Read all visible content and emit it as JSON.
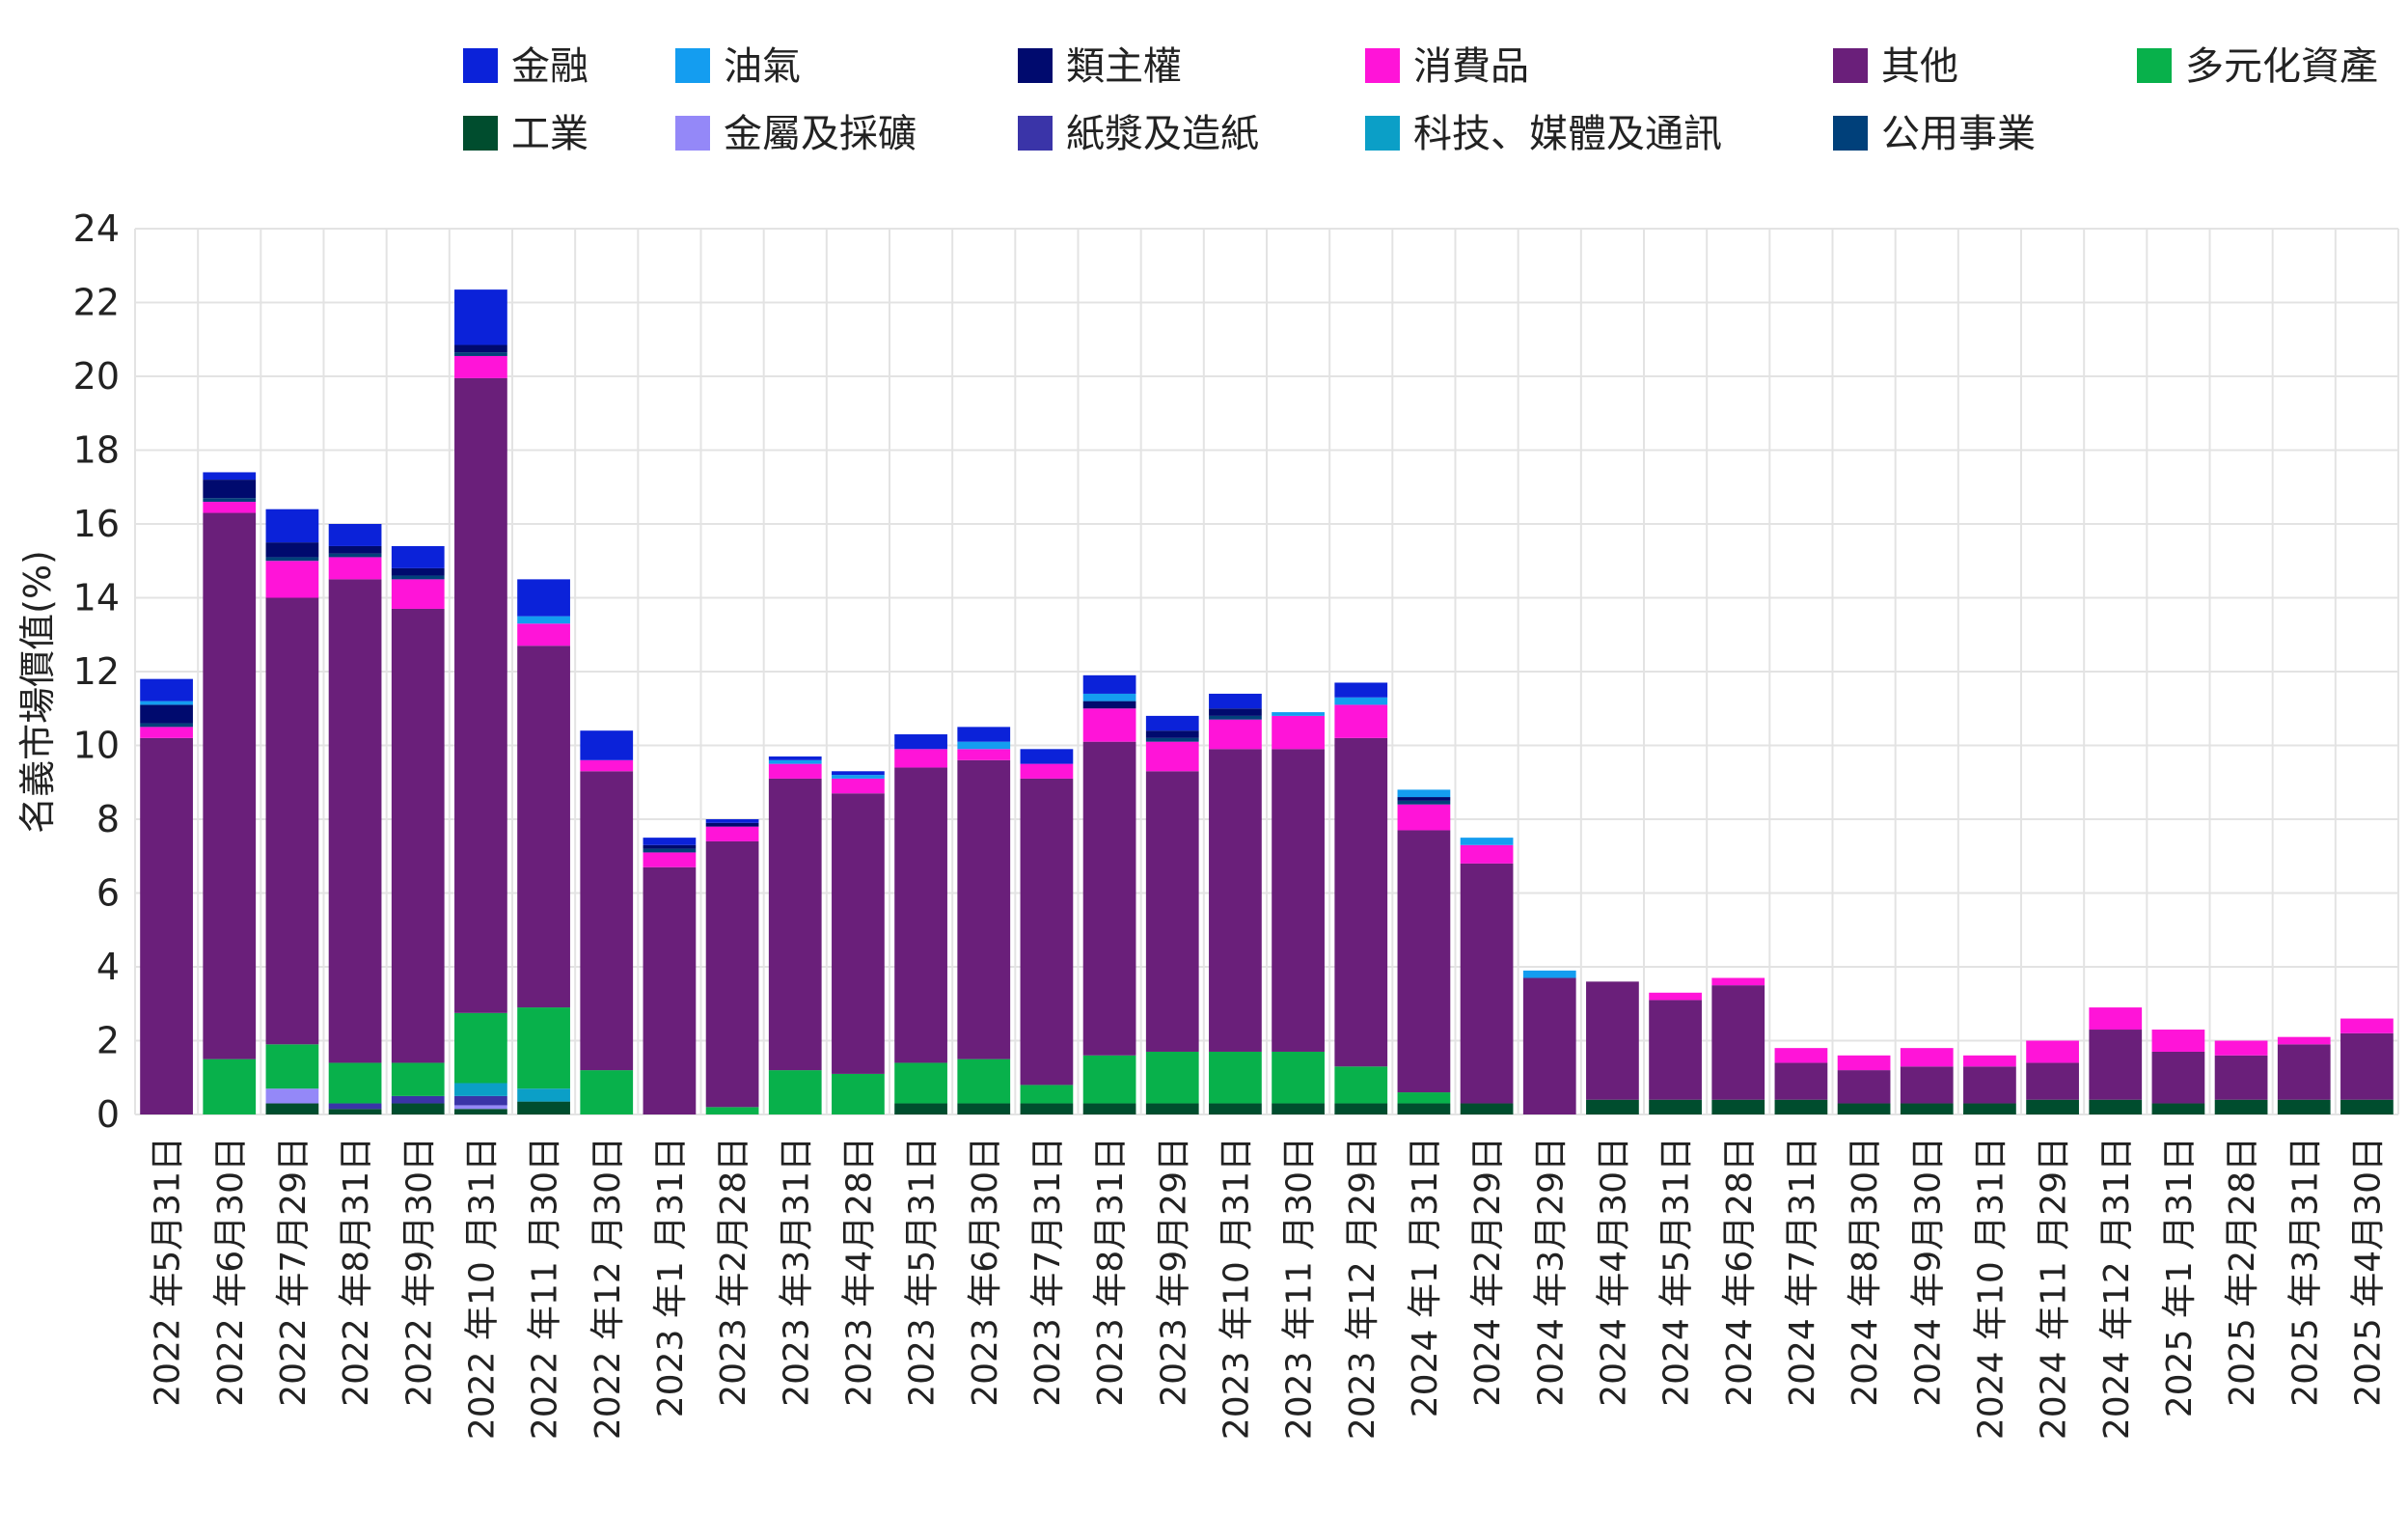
{
  "chart_data": {
    "type": "bar",
    "stacked": true,
    "ylabel": "名義市場價值(%)",
    "xlabel": "",
    "ylim": [
      0,
      24
    ],
    "yticks": [
      0,
      2,
      4,
      6,
      8,
      10,
      12,
      14,
      16,
      18,
      20,
      22,
      24
    ],
    "grid": true,
    "legend_position": "top",
    "categories": [
      "2022 年5月31日",
      "2022 年6月30日",
      "2022 年7月29日",
      "2022 年8月31日",
      "2022 年9月30日",
      "2022 年10 月31日",
      "2022 年11 月30日",
      "2022 年12 月30日",
      "2023 年1 月31日",
      "2023 年2月28日",
      "2023 年3月31日",
      "2023 年4月28日",
      "2023 年5月31日",
      "2023 年6月30日",
      "2023 年7月31日",
      "2023 年8月31日",
      "2023 年9月29日",
      "2023 年10 月31日",
      "2023 年11 月30日",
      "2023 年12 月29日",
      "2024 年1 月31日",
      "2024 年2月29日",
      "2024 年3月29日",
      "2024 年4月30日",
      "2024 年5月31日",
      "2024 年6月28日",
      "2024 年7月31日",
      "2024 年8月30日",
      "2024 年9月30日",
      "2024 年10 月31日",
      "2024 年11 月29日",
      "2024 年12 月31日",
      "2025 年1 月31日",
      "2025 年2月28日",
      "2025 年3月31日",
      "2025 年4月30日"
    ],
    "legend_order": [
      "金融",
      "油氣",
      "類主權",
      "消費品",
      "其他",
      "多元化資產",
      "工業",
      "金屬及採礦",
      "紙漿及造紙",
      "科技、媒體及通訊",
      "公用事業"
    ],
    "series": [
      {
        "name": "工業",
        "color": "#004d2e",
        "values": [
          0,
          0,
          0.3,
          0.15,
          0.3,
          0.15,
          0.35,
          0,
          0,
          0,
          0,
          0,
          0.3,
          0.3,
          0.3,
          0.3,
          0.3,
          0.3,
          0.3,
          0.3,
          0.3,
          0.3,
          0,
          0.4,
          0.4,
          0.4,
          0.4,
          0.3,
          0.3,
          0.3,
          0.4,
          0.4,
          0.3,
          0.4,
          0.4,
          0.4
        ]
      },
      {
        "name": "金屬及採礦",
        "color": "#9488f8",
        "values": [
          0,
          0,
          0.4,
          0,
          0,
          0.1,
          0,
          0,
          0,
          0,
          0,
          0,
          0,
          0,
          0,
          0,
          0,
          0,
          0,
          0,
          0,
          0,
          0,
          0,
          0,
          0,
          0,
          0,
          0,
          0,
          0,
          0,
          0,
          0,
          0,
          0
        ]
      },
      {
        "name": "紙漿及造紙",
        "color": "#3a34a8",
        "values": [
          0,
          0,
          0,
          0.15,
          0.2,
          0.25,
          0,
          0,
          0,
          0,
          0,
          0,
          0,
          0,
          0,
          0,
          0,
          0,
          0,
          0,
          0,
          0,
          0,
          0,
          0,
          0,
          0,
          0,
          0,
          0,
          0,
          0,
          0,
          0,
          0,
          0
        ]
      },
      {
        "name": "科技、媒體及通訊",
        "color": "#0b9fc7",
        "values": [
          0,
          0,
          0,
          0,
          0,
          0.35,
          0.35,
          0,
          0,
          0,
          0,
          0,
          0,
          0,
          0,
          0,
          0,
          0,
          0,
          0,
          0,
          0,
          0,
          0,
          0,
          0,
          0,
          0,
          0,
          0,
          0,
          0,
          0,
          0,
          0,
          0
        ]
      },
      {
        "name": "多元化資產",
        "color": "#08b14b",
        "values": [
          0,
          1.5,
          1.2,
          1.1,
          0.9,
          1.9,
          2.2,
          1.2,
          0,
          0.2,
          1.2,
          1.1,
          1.1,
          1.2,
          0.5,
          1.3,
          1.4,
          1.4,
          1.4,
          1.0,
          0.3,
          0,
          0,
          0,
          0,
          0,
          0,
          0,
          0,
          0,
          0,
          0,
          0,
          0,
          0,
          0
        ]
      },
      {
        "name": "其他",
        "color": "#6a1f7a",
        "values": [
          10.2,
          14.8,
          12.1,
          13.1,
          12.3,
          17.2,
          9.8,
          8.1,
          6.7,
          7.2,
          7.9,
          7.6,
          8.0,
          8.1,
          8.3,
          8.5,
          7.6,
          8.2,
          8.2,
          8.9,
          7.1,
          6.5,
          3.7,
          3.2,
          2.7,
          3.1,
          1.0,
          0.9,
          1.0,
          1.0,
          1.0,
          1.9,
          1.4,
          1.2,
          1.5,
          1.8
        ]
      },
      {
        "name": "消費品",
        "color": "#ff14d8",
        "values": [
          0.3,
          0.3,
          1.0,
          0.6,
          0.8,
          0.6,
          0.6,
          0.3,
          0.4,
          0.4,
          0.4,
          0.4,
          0.5,
          0.3,
          0.4,
          0.9,
          0.8,
          0.8,
          0.9,
          0.9,
          0.7,
          0.5,
          0,
          0,
          0.2,
          0.2,
          0.4,
          0.4,
          0.5,
          0.3,
          0.6,
          0.6,
          0.6,
          0.4,
          0.2,
          0.4
        ]
      },
      {
        "name": "公用事業",
        "color": "#00407a",
        "values": [
          0.1,
          0.1,
          0.1,
          0.1,
          0.1,
          0.1,
          0,
          0,
          0.1,
          0,
          0,
          0,
          0,
          0,
          0,
          0,
          0.1,
          0.1,
          0,
          0,
          0.1,
          0,
          0,
          0,
          0,
          0,
          0,
          0,
          0,
          0,
          0,
          0,
          0,
          0,
          0,
          0
        ]
      },
      {
        "name": "類主權",
        "color": "#000a6e",
        "values": [
          0.5,
          0.5,
          0.4,
          0.2,
          0.2,
          0.2,
          0,
          0,
          0.1,
          0.1,
          0,
          0,
          0,
          0,
          0,
          0.2,
          0.2,
          0.2,
          0,
          0,
          0.1,
          0,
          0,
          0,
          0,
          0,
          0,
          0,
          0,
          0,
          0,
          0,
          0,
          0,
          0,
          0
        ]
      },
      {
        "name": "油氣",
        "color": "#149df0",
        "values": [
          0.1,
          0,
          0,
          0,
          0,
          0,
          0.2,
          0,
          0,
          0,
          0.1,
          0.1,
          0,
          0.2,
          0,
          0.2,
          0,
          0,
          0.1,
          0.2,
          0.2,
          0.2,
          0.2,
          0,
          0,
          0,
          0,
          0,
          0,
          0,
          0,
          0,
          0,
          0,
          0,
          0
        ]
      },
      {
        "name": "金融",
        "color": "#0b22d9",
        "values": [
          0.6,
          0.2,
          0.9,
          0.6,
          0.6,
          1.5,
          1.0,
          0.8,
          0.2,
          0.1,
          0.1,
          0.1,
          0.4,
          0.4,
          0.4,
          0.5,
          0.4,
          0.4,
          0,
          0.4,
          0,
          0,
          0,
          0,
          0,
          0,
          0,
          0,
          0,
          0,
          0,
          0,
          0,
          0,
          0,
          0
        ]
      }
    ]
  }
}
